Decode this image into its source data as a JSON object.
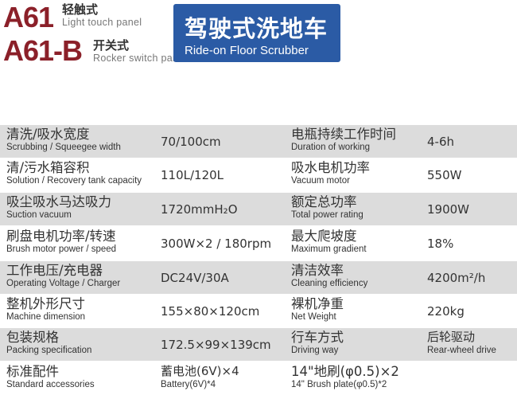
{
  "header": {
    "model1": "A61",
    "model1_cn": "轻触式",
    "model1_en": "Light touch panel",
    "model2": "A61-B",
    "model2_cn": "开关式",
    "model2_en": "Rocker switch panel",
    "title_cn": "驾驶式洗地车",
    "title_en": "Ride-on Floor Scrubber"
  },
  "colors": {
    "model": "#8b2029",
    "banner": "#2b5ba5",
    "row_gray": "#dcdcdc"
  },
  "rows": [
    {
      "l1_cn": "清洗/吸水宽度",
      "l1_en": "Scrubbing / Squeegee width",
      "v1": "70/100cm",
      "l2_cn": "电瓶持续工作时间",
      "l2_en": "Duration of working",
      "v2": "4-6h"
    },
    {
      "l1_cn": "清/污水箱容积",
      "l1_en": "Solution / Recovery tank capacity",
      "v1": "110L/120L",
      "l2_cn": "吸水电机功率",
      "l2_en": "Vacuum motor",
      "v2": "550W"
    },
    {
      "l1_cn": "吸尘吸水马达吸力",
      "l1_en": "Suction vacuum",
      "v1": "1720mmH₂O",
      "l2_cn": "额定总功率",
      "l2_en": "Total power rating",
      "v2": "1900W"
    },
    {
      "l1_cn": "刷盘电机功率/转速",
      "l1_en": "Brush motor power / speed",
      "v1": "300W×2 / 180rpm",
      "l2_cn": "最大爬坡度",
      "l2_en": "Maximum gradient",
      "v2": "18%"
    },
    {
      "l1_cn": "工作电压/充电器",
      "l1_en": "Operating Voltage / Charger",
      "v1": "DC24V/30A",
      "l2_cn": "清洁效率",
      "l2_en": "Cleaning efficiency",
      "v2": "4200m²/h"
    },
    {
      "l1_cn": "整机外形尺寸",
      "l1_en": "Machine dimension",
      "v1": "155×80×120cm",
      "l2_cn": "裸机净重",
      "l2_en": "Net Weight",
      "v2": "220kg"
    },
    {
      "l1_cn": "包装规格",
      "l1_en": "Packing specification",
      "v1": "172.5×99×139cm",
      "l2_cn": "行车方式",
      "l2_en": "Driving way",
      "v2_cn": "后轮驱动",
      "v2_en": "Rear-wheel drive"
    },
    {
      "l1_cn": "标准配件",
      "l1_en": "Standard accessories",
      "v1_cn": "蓄电池(6V)×4",
      "v1_en": "Battery(6V)*4",
      "l2_cn": "14\"地刷(φ0.5)×2",
      "l2_en": "14\" Brush plate(φ0.5)*2"
    }
  ]
}
